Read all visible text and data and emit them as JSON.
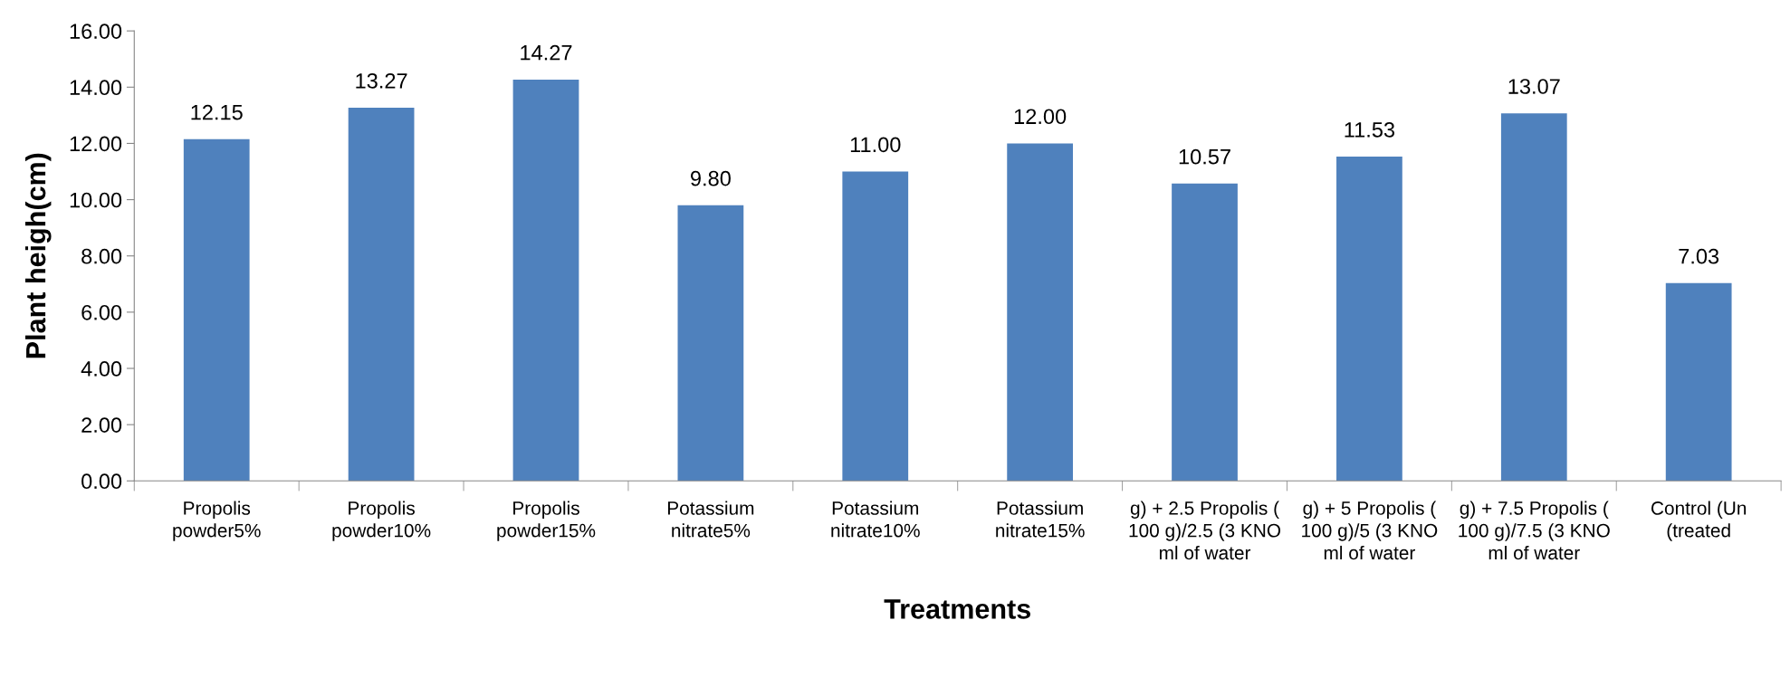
{
  "chart_data": {
    "type": "bar",
    "xlabel": "Treatments",
    "ylabel": "Plant heigh(cm)",
    "categories": [
      "Propolis\npowder5%",
      "Propolis\npowder10%",
      "Propolis\npowder15%",
      "Potassium\nnitrate5%",
      "Potassium\nnitrate10%",
      "Potassium\nnitrate15%",
      "g) + 2.5 Propolis (\n100 g)/2.5 (3 KNO\nml of water",
      "g) + 5 Propolis (\n100 g)/5 (3 KNO\nml of water",
      "g) + 7.5 Propolis (\n100 g)/7.5 (3 KNO\nml of water",
      "Control (Un\n(treated"
    ],
    "values": [
      12.15,
      13.27,
      14.27,
      9.8,
      11.0,
      12.0,
      10.57,
      11.53,
      13.07,
      7.03
    ],
    "value_labels": [
      "12.15",
      "13.27",
      "14.27",
      "9.80",
      "11.00",
      "12.00",
      "10.57",
      "11.53",
      "13.07",
      "7.03"
    ],
    "color": "#4f81bd",
    "ylim": [
      0,
      16
    ],
    "yticks": [
      {
        "value": 0,
        "label": "0.00"
      },
      {
        "value": 2,
        "label": "2.00"
      },
      {
        "value": 4,
        "label": "4.00"
      },
      {
        "value": 6,
        "label": "6.00"
      },
      {
        "value": 8,
        "label": "8.00"
      },
      {
        "value": 10,
        "label": "10.00"
      },
      {
        "value": 12,
        "label": "12.00"
      },
      {
        "value": 14,
        "label": "14.00"
      },
      {
        "value": 16,
        "label": "16.00"
      }
    ],
    "grid": false,
    "legend": false
  }
}
